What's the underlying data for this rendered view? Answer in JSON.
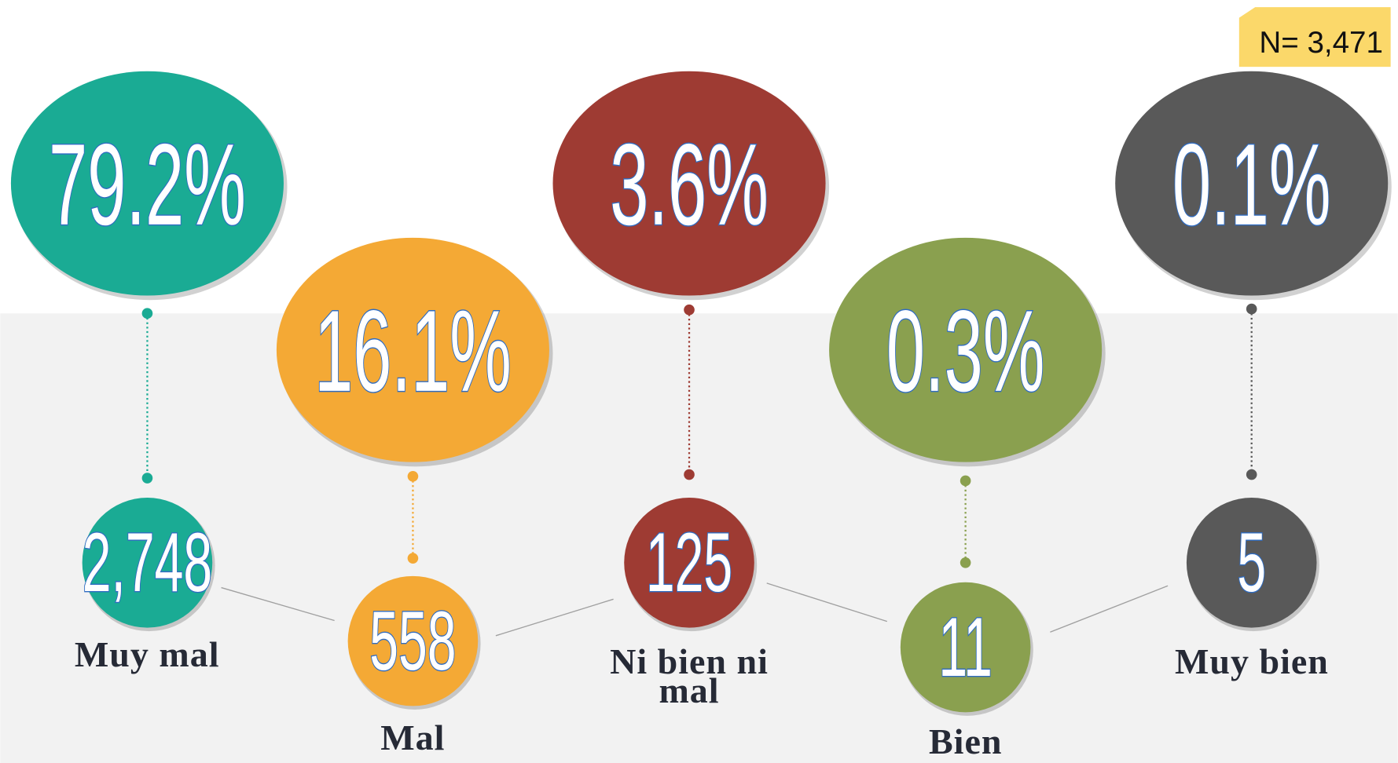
{
  "badge": "N= 3,471",
  "items": [
    {
      "percent": "79.2%",
      "count": "2,748",
      "label": "Muy mal"
    },
    {
      "percent": "16.1%",
      "count": "558",
      "label": "Mal"
    },
    {
      "percent": "3.6%",
      "count": "125",
      "label": "Ni bien ni mal"
    },
    {
      "percent": "0.3%",
      "count": "11",
      "label": "Bien"
    },
    {
      "percent": "0.1%",
      "count": "5",
      "label": "Muy bien"
    }
  ]
}
